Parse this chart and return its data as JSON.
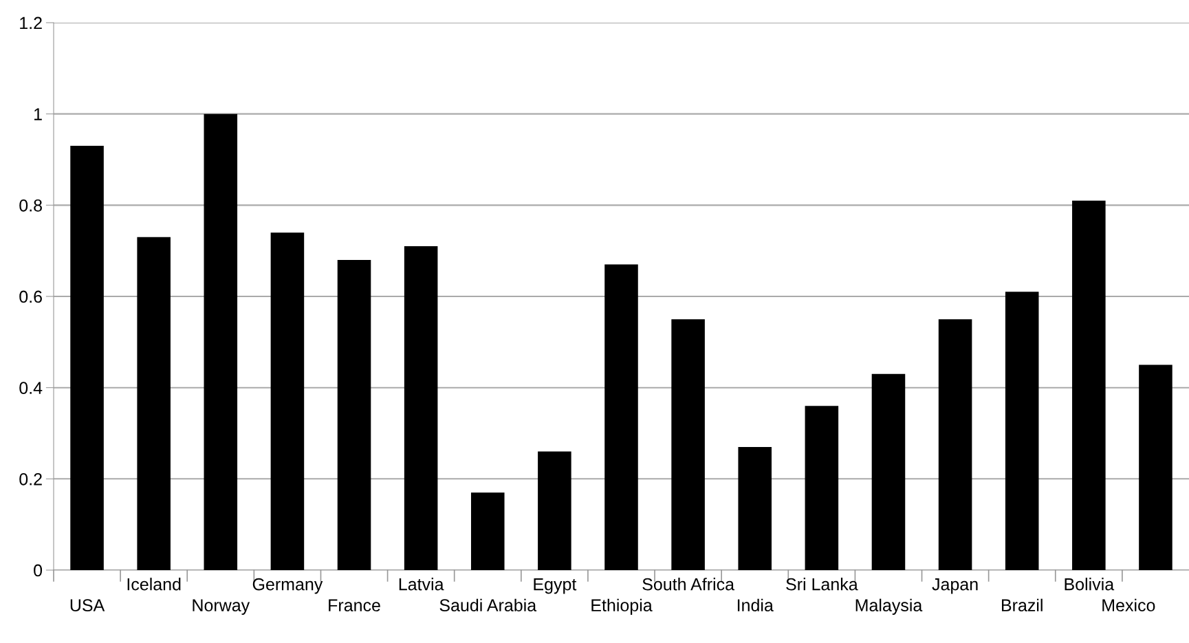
{
  "chart_data": {
    "type": "bar",
    "categories": [
      "USA",
      "Iceland",
      "Norway",
      "Germany",
      "France",
      "Latvia",
      "Saudi Arabia",
      "Egypt",
      "Ethiopia",
      "South Africa",
      "India",
      "Sri Lanka",
      "Malaysia",
      "Japan",
      "Brazil",
      "Bolivia",
      "Mexico"
    ],
    "values": [
      0.93,
      0.73,
      1.0,
      0.74,
      0.68,
      0.71,
      0.17,
      0.26,
      0.67,
      0.55,
      0.27,
      0.36,
      0.43,
      0.55,
      0.61,
      0.81,
      0.45
    ],
    "color": "#000000",
    "ylim": [
      0,
      1.2
    ],
    "yticks": [
      0,
      0.2,
      0.4,
      0.6,
      0.8,
      1,
      1.2
    ],
    "grid": "y",
    "legend": false
  }
}
